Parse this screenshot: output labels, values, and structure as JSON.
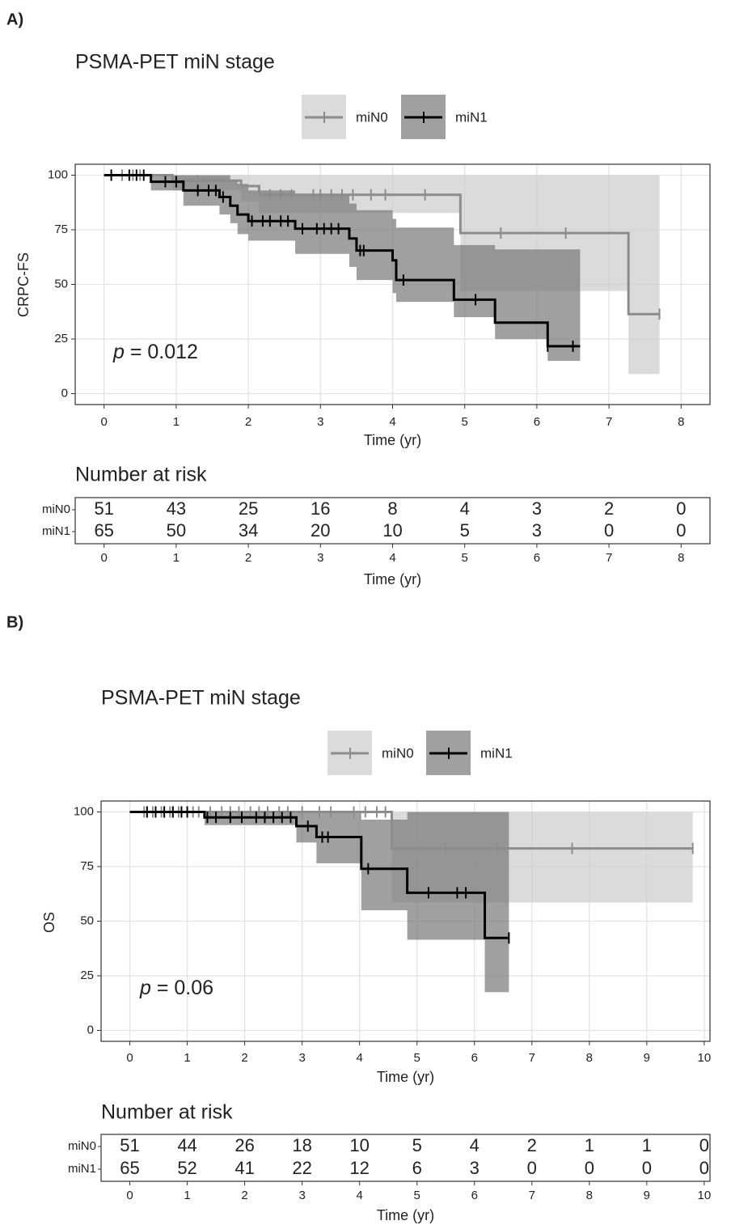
{
  "chart_data": [
    {
      "type": "km",
      "panel": "A)",
      "title": "PSMA-PET miN stage",
      "xlabel": "Time (yr)",
      "ylabel": "CRPC-FS",
      "p_symbol": "p",
      "p_text": "= 0.012",
      "xlim": [
        -0.4,
        8.4
      ],
      "ylim": [
        -5,
        105
      ],
      "xticks": [
        0,
        1,
        2,
        3,
        4,
        5,
        6,
        7,
        8
      ],
      "yticks": [
        0,
        25,
        50,
        75,
        100
      ],
      "grid": true,
      "series": [
        {
          "name": "miN0",
          "color": "#8c8c8c",
          "ci_color": "#cccccc",
          "x": [
            0,
            0.95,
            1.9,
            2.15,
            4.94,
            7.27,
            7.7
          ],
          "values": [
            100,
            97.5,
            95,
            91,
            73.5,
            36.4,
            36.4
          ],
          "lower": [
            100,
            93,
            88,
            82.7,
            47,
            9,
            9
          ],
          "upper": [
            100,
            100,
            100,
            100,
            100,
            100,
            100
          ],
          "censor": [
            0.25,
            0.4,
            0.5,
            1.3,
            2.3,
            2.45,
            2.6,
            2.9,
            3.0,
            3.15,
            3.3,
            3.45,
            3.7,
            3.9,
            4.45,
            5.5,
            6.4,
            7.7
          ]
        },
        {
          "name": "miN1",
          "color": "#000000",
          "ci_color": "#777777",
          "x": [
            0,
            0.65,
            1.1,
            1.6,
            1.75,
            1.85,
            2.0,
            2.65,
            3.4,
            3.5,
            4.0,
            4.05,
            4.85,
            5.42,
            6.15,
            6.6
          ],
          "values": [
            100,
            97,
            93,
            90,
            86,
            82,
            79,
            75.5,
            71,
            65.5,
            61,
            52,
            43,
            32.5,
            21.7,
            21.7
          ],
          "lower": [
            100,
            93,
            86,
            82,
            78,
            73,
            70,
            64,
            58,
            52,
            46,
            42,
            35,
            25,
            15,
            7.5
          ],
          "upper": [
            100,
            100,
            100,
            100,
            98,
            96,
            93,
            91,
            87,
            84,
            80,
            76,
            68,
            66,
            66,
            66
          ],
          "censor": [
            0.1,
            0.35,
            0.45,
            0.55,
            0.85,
            1.0,
            1.3,
            1.45,
            1.55,
            1.65,
            2.05,
            2.2,
            2.3,
            2.45,
            2.55,
            2.75,
            2.95,
            3.05,
            3.15,
            3.25,
            3.55,
            3.6,
            4.15,
            5.15,
            6.15,
            6.5
          ]
        }
      ],
      "risk_table": {
        "title": "Number at risk",
        "xlabel": "Time (yr)",
        "times": [
          0,
          1,
          2,
          3,
          4,
          5,
          6,
          7,
          8
        ],
        "rows": [
          {
            "name": "miN0",
            "color": "#8c8c8c",
            "values": [
              51,
              43,
              25,
              16,
              8,
              4,
              3,
              2,
              0
            ]
          },
          {
            "name": "miN1",
            "color": "#000000",
            "values": [
              65,
              50,
              34,
              20,
              10,
              5,
              3,
              0,
              0
            ]
          }
        ]
      }
    },
    {
      "type": "km",
      "panel": "B)",
      "title": "PSMA-PET miN stage",
      "xlabel": "Time (yr)",
      "ylabel": "OS",
      "p_symbol": "p",
      "p_text": "= 0.06",
      "xlim": [
        -0.5,
        10.1
      ],
      "ylim": [
        -5,
        105
      ],
      "xticks": [
        0,
        1,
        2,
        3,
        4,
        5,
        6,
        7,
        8,
        9,
        10
      ],
      "yticks": [
        0,
        25,
        50,
        75,
        100
      ],
      "grid": true,
      "series": [
        {
          "name": "miN0",
          "color": "#8c8c8c",
          "ci_color": "#cccccc",
          "x": [
            0,
            4.56,
            9.8
          ],
          "values": [
            100,
            83.3,
            83.3
          ],
          "lower": [
            100,
            58.5,
            58.5
          ],
          "upper": [
            100,
            100,
            100
          ],
          "censor": [
            0.25,
            0.4,
            0.55,
            0.7,
            0.85,
            1.1,
            1.2,
            1.4,
            1.6,
            1.75,
            1.9,
            2.1,
            2.25,
            2.4,
            2.6,
            2.75,
            3.0,
            3.3,
            3.5,
            3.9,
            4.1,
            4.3,
            4.45,
            5.5,
            6.4,
            7.7,
            9.8
          ]
        },
        {
          "name": "miN1",
          "color": "#000000",
          "ci_color": "#777777",
          "x": [
            0,
            1.3,
            2.9,
            3.25,
            4.03,
            4.83,
            6.18,
            6.6
          ],
          "values": [
            100,
            97.5,
            93.5,
            88.5,
            74,
            63,
            42.3,
            42.3
          ],
          "lower": [
            100,
            94,
            86,
            76.5,
            55,
            41.5,
            17.5,
            17.5
          ],
          "upper": [
            100,
            100,
            100,
            100,
            96.5,
            100,
            100,
            100
          ],
          "censor": [
            0.3,
            0.45,
            0.6,
            0.75,
            0.9,
            1.0,
            1.35,
            1.5,
            1.75,
            1.95,
            2.2,
            2.35,
            2.5,
            2.65,
            2.8,
            3.1,
            3.35,
            3.45,
            4.15,
            5.2,
            5.7,
            5.85,
            6.6
          ]
        }
      ],
      "risk_table": {
        "title": "Number at risk",
        "xlabel": "Time (yr)",
        "times": [
          0,
          1,
          2,
          3,
          4,
          5,
          6,
          7,
          8,
          9,
          10
        ],
        "rows": [
          {
            "name": "miN0",
            "color": "#8c8c8c",
            "values": [
              51,
              44,
              26,
              18,
              10,
              5,
              4,
              2,
              1,
              1,
              0
            ]
          },
          {
            "name": "miN1",
            "color": "#000000",
            "values": [
              65,
              52,
              41,
              22,
              12,
              6,
              3,
              0,
              0,
              0,
              0
            ]
          }
        ]
      }
    }
  ]
}
